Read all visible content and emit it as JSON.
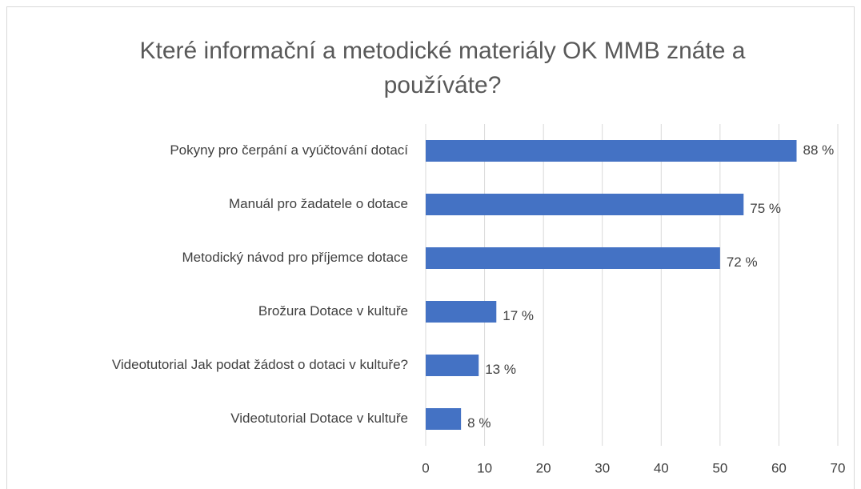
{
  "chart_data": {
    "type": "barh",
    "title": "Které informační a metodické materiály OK MMB znáte a používáte?",
    "categories": [
      "Pokyny pro čerpání a vyúčtování dotací",
      "Manuál pro žadatele o dotace",
      "Metodický návod pro příjemce dotace",
      "Brožura Dotace v kultuře",
      "Videotutorial Jak podat žádost o dotaci v kultuře?",
      "Videotutorial Dotace v kultuře"
    ],
    "values": [
      63,
      54,
      50,
      12,
      9,
      6
    ],
    "data_labels": [
      "88 %",
      "75 %",
      "72 %",
      "17 %",
      "13 %",
      "8 %"
    ],
    "color": "#4472c4",
    "xlim": [
      0,
      70
    ],
    "xticks": [
      0,
      10,
      20,
      30,
      40,
      50,
      60,
      70
    ],
    "grid": true
  }
}
